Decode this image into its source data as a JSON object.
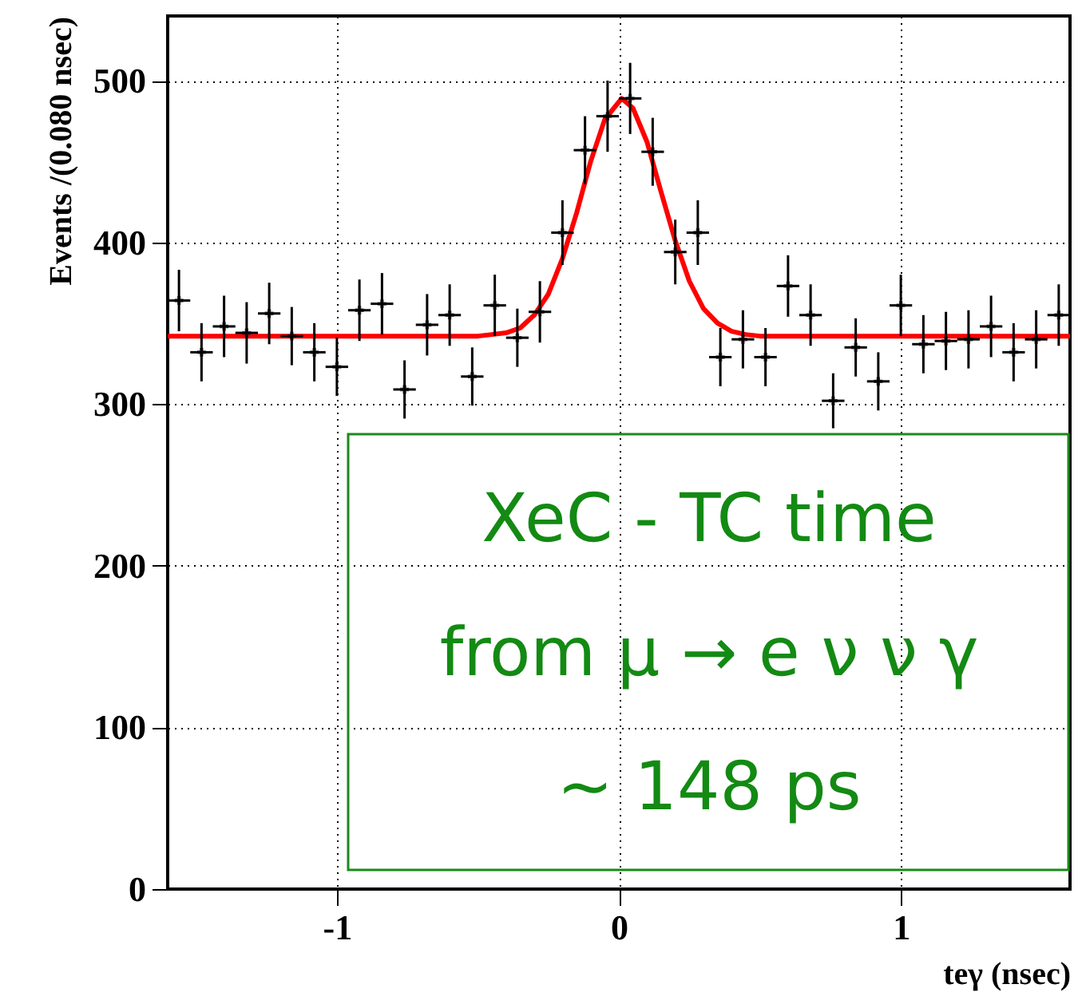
{
  "chart_data": {
    "type": "scatter",
    "xlabel": "teγ (nsec)",
    "ylabel": "Events /(0.080 nsec)",
    "xlim": [
      -1.6,
      1.6
    ],
    "xticks": [
      {
        "value": -1,
        "label": "-1"
      },
      {
        "value": 0,
        "label": "0"
      },
      {
        "value": 1,
        "label": "1"
      }
    ],
    "ylim": [
      0,
      540
    ],
    "yticks": [
      0,
      100,
      200,
      300,
      400,
      500
    ],
    "grid": true,
    "annotations": [
      "XeC - TC time\nfrom μ → e ν ν γ\n~ 148 ps"
    ],
    "series": [
      {
        "color": "#000000",
        "marker": "cross",
        "x": [
          -1.56,
          -1.48,
          -1.4,
          -1.32,
          -1.24,
          -1.16,
          -1.08,
          -1.0,
          -0.92,
          -0.84,
          -0.76,
          -0.68,
          -0.6,
          -0.52,
          -0.44,
          -0.36,
          -0.28,
          -0.2,
          -0.12,
          -0.04,
          0.04,
          0.12,
          0.2,
          0.28,
          0.36,
          0.44,
          0.52,
          0.6,
          0.68,
          0.76,
          0.84,
          0.92,
          1.0,
          1.08,
          1.16,
          1.24,
          1.32,
          1.4,
          1.48,
          1.56
        ],
        "values": [
          364,
          332,
          348,
          344,
          356,
          342,
          332,
          323,
          358,
          362,
          309,
          349,
          355,
          317,
          361,
          341,
          357,
          406,
          457,
          478,
          489,
          456,
          394,
          406,
          329,
          340,
          329,
          373,
          355,
          302,
          335,
          314,
          361,
          337,
          339,
          340,
          348,
          332,
          340,
          355
        ],
        "errors": [
          19,
          18,
          19,
          19,
          19,
          18,
          18,
          18,
          19,
          19,
          18,
          19,
          19,
          18,
          19,
          18,
          19,
          20,
          21,
          22,
          22,
          21,
          20,
          20,
          18,
          18,
          18,
          19,
          19,
          17,
          18,
          18,
          19,
          18,
          18,
          18,
          19,
          18,
          18,
          19
        ],
        "xerrors": [
          0.04,
          0.04,
          0.04,
          0.04,
          0.04,
          0.04,
          0.04,
          0.04,
          0.04,
          0.04,
          0.04,
          0.04,
          0.04,
          0.04,
          0.04,
          0.04,
          0.04,
          0.04,
          0.04,
          0.04,
          0.04,
          0.04,
          0.04,
          0.04,
          0.04,
          0.04,
          0.04,
          0.04,
          0.04,
          0.04,
          0.04,
          0.04,
          0.04,
          0.04,
          0.04,
          0.04,
          0.04,
          0.04,
          0.04,
          0.04
        ]
      },
      {
        "type": "line",
        "color": "#ff0000",
        "marker": "none",
        "x": [
          -1.6,
          -0.5,
          -0.45,
          -0.4,
          -0.35,
          -0.3,
          -0.25,
          -0.2,
          -0.15,
          -0.1,
          -0.05,
          0.01,
          0.05,
          0.1,
          0.15,
          0.2,
          0.25,
          0.3,
          0.35,
          0.4,
          0.45,
          0.5,
          1.6
        ],
        "values": [
          342,
          342,
          343,
          344,
          347,
          355,
          368,
          390,
          418,
          450,
          476,
          489,
          483,
          462,
          431,
          401,
          376,
          359,
          350,
          345,
          343,
          342,
          342
        ]
      }
    ]
  }
}
